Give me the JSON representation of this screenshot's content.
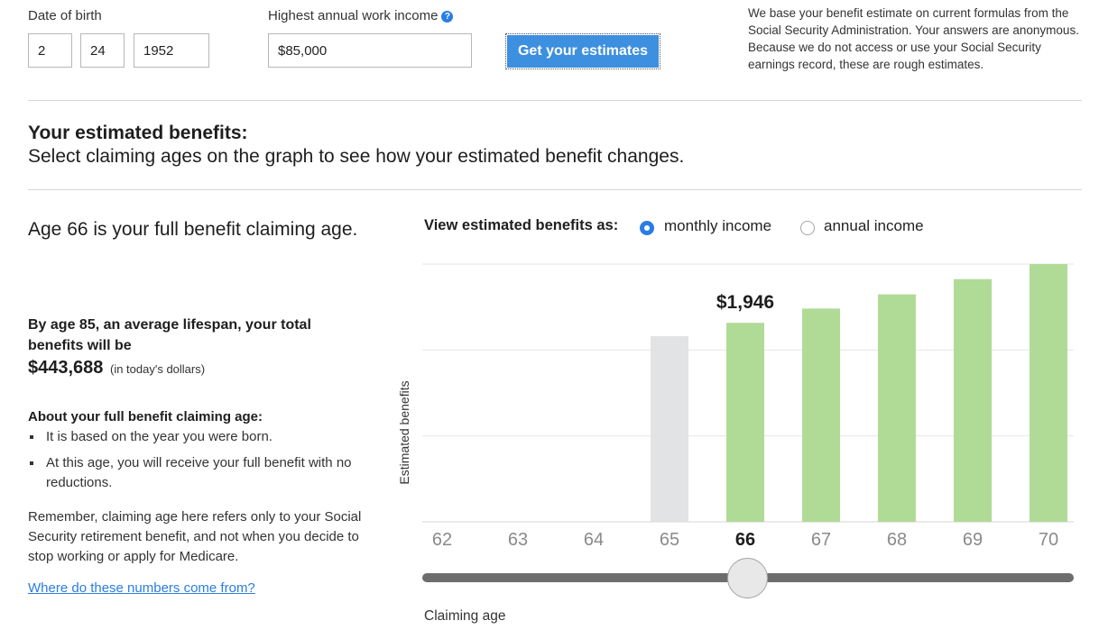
{
  "form": {
    "dob_label": "Date of birth",
    "dob_month": "2",
    "dob_day": "24",
    "dob_year": "1952",
    "income_label": "Highest annual work income",
    "income_help_icon": "question-circle-icon",
    "income_value": "$85,000",
    "submit_label": "Get your estimates",
    "disclaimer": "We base your benefit estimate on current formulas from the Social Security Administration. Your answers are anonymous. Because we do not access or use your Social Security earnings record, these are rough estimates."
  },
  "results": {
    "heading": "Your estimated benefits:",
    "subheading": "Select claiming ages on the graph to see how your estimated benefit changes."
  },
  "summary": {
    "full_age_text": "Age 66 is your full benefit claiming age.",
    "total_lead": "By age 85, an average lifespan, your total benefits will be",
    "total_value": "$443,688",
    "total_note": "(in today's dollars)",
    "about_heading": "About your full benefit claiming age:",
    "bullets": [
      "It is based on the year you were born.",
      "At this age, you will receive your full benefit with no reductions."
    ],
    "remember": "Remember, claiming age here refers only to your Social Security retirement benefit, and not when you decide to stop working or apply for Medicare.",
    "link": "Where do these numbers come from?"
  },
  "view": {
    "label": "View estimated benefits as:",
    "options": [
      "monthly income",
      "annual income"
    ],
    "selected": "monthly income"
  },
  "chart_data": {
    "type": "bar",
    "categories": [
      "62",
      "63",
      "64",
      "65",
      "66",
      "67",
      "68",
      "69",
      "70"
    ],
    "values": [
      null,
      null,
      null,
      1816,
      1946,
      2086,
      2225,
      2374,
      2521
    ],
    "selected_category": "66",
    "selected_label": "$1,946",
    "ylabel": "Estimated benefits",
    "xlabel": "Claiming age",
    "ylim": [
      0,
      2521
    ],
    "grid": true,
    "colors": {
      "eligible": "#b0db96",
      "ineligible": "#e2e3e4",
      "grid": "#e6e6e6",
      "tick": "#8a8a8a",
      "tick_selected": "#1e1e1e"
    }
  },
  "slider": {
    "value": "66"
  }
}
